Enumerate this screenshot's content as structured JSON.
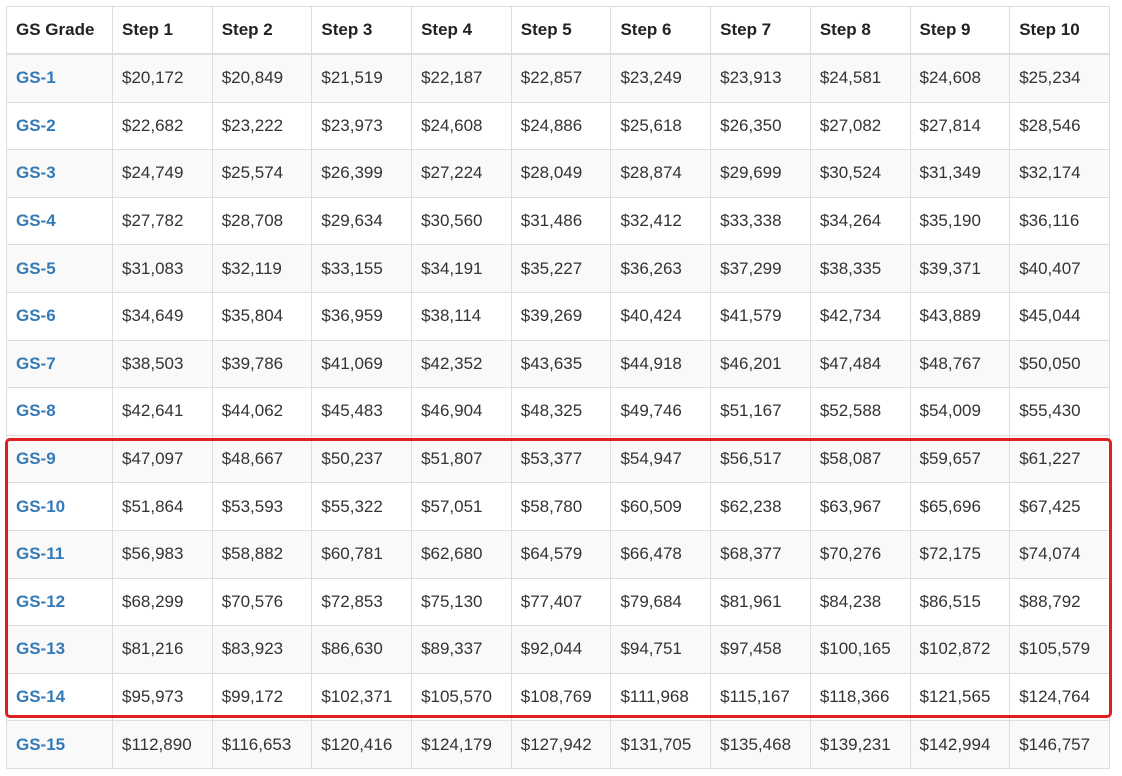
{
  "table": {
    "headers": [
      "GS Grade",
      "Step 1",
      "Step 2",
      "Step 3",
      "Step 4",
      "Step 5",
      "Step 6",
      "Step 7",
      "Step 8",
      "Step 9",
      "Step 10"
    ],
    "rows": [
      {
        "grade": "GS-1",
        "steps": [
          "$20,172",
          "$20,849",
          "$21,519",
          "$22,187",
          "$22,857",
          "$23,249",
          "$23,913",
          "$24,581",
          "$24,608",
          "$25,234"
        ]
      },
      {
        "grade": "GS-2",
        "steps": [
          "$22,682",
          "$23,222",
          "$23,973",
          "$24,608",
          "$24,886",
          "$25,618",
          "$26,350",
          "$27,082",
          "$27,814",
          "$28,546"
        ]
      },
      {
        "grade": "GS-3",
        "steps": [
          "$24,749",
          "$25,574",
          "$26,399",
          "$27,224",
          "$28,049",
          "$28,874",
          "$29,699",
          "$30,524",
          "$31,349",
          "$32,174"
        ]
      },
      {
        "grade": "GS-4",
        "steps": [
          "$27,782",
          "$28,708",
          "$29,634",
          "$30,560",
          "$31,486",
          "$32,412",
          "$33,338",
          "$34,264",
          "$35,190",
          "$36,116"
        ]
      },
      {
        "grade": "GS-5",
        "steps": [
          "$31,083",
          "$32,119",
          "$33,155",
          "$34,191",
          "$35,227",
          "$36,263",
          "$37,299",
          "$38,335",
          "$39,371",
          "$40,407"
        ]
      },
      {
        "grade": "GS-6",
        "steps": [
          "$34,649",
          "$35,804",
          "$36,959",
          "$38,114",
          "$39,269",
          "$40,424",
          "$41,579",
          "$42,734",
          "$43,889",
          "$45,044"
        ]
      },
      {
        "grade": "GS-7",
        "steps": [
          "$38,503",
          "$39,786",
          "$41,069",
          "$42,352",
          "$43,635",
          "$44,918",
          "$46,201",
          "$47,484",
          "$48,767",
          "$50,050"
        ]
      },
      {
        "grade": "GS-8",
        "steps": [
          "$42,641",
          "$44,062",
          "$45,483",
          "$46,904",
          "$48,325",
          "$49,746",
          "$51,167",
          "$52,588",
          "$54,009",
          "$55,430"
        ]
      },
      {
        "grade": "GS-9",
        "steps": [
          "$47,097",
          "$48,667",
          "$50,237",
          "$51,807",
          "$53,377",
          "$54,947",
          "$56,517",
          "$58,087",
          "$59,657",
          "$61,227"
        ]
      },
      {
        "grade": "GS-10",
        "steps": [
          "$51,864",
          "$53,593",
          "$55,322",
          "$57,051",
          "$58,780",
          "$60,509",
          "$62,238",
          "$63,967",
          "$65,696",
          "$67,425"
        ]
      },
      {
        "grade": "GS-11",
        "steps": [
          "$56,983",
          "$58,882",
          "$60,781",
          "$62,680",
          "$64,579",
          "$66,478",
          "$68,377",
          "$70,276",
          "$72,175",
          "$74,074"
        ]
      },
      {
        "grade": "GS-12",
        "steps": [
          "$68,299",
          "$70,576",
          "$72,853",
          "$75,130",
          "$77,407",
          "$79,684",
          "$81,961",
          "$84,238",
          "$86,515",
          "$88,792"
        ]
      },
      {
        "grade": "GS-13",
        "steps": [
          "$81,216",
          "$83,923",
          "$86,630",
          "$89,337",
          "$92,044",
          "$94,751",
          "$97,458",
          "$100,165",
          "$102,872",
          "$105,579"
        ]
      },
      {
        "grade": "GS-14",
        "steps": [
          "$95,973",
          "$99,172",
          "$102,371",
          "$105,570",
          "$108,769",
          "$111,968",
          "$115,167",
          "$118,366",
          "$121,565",
          "$124,764"
        ]
      },
      {
        "grade": "GS-15",
        "steps": [
          "$112,890",
          "$116,653",
          "$120,416",
          "$124,179",
          "$127,942",
          "$131,705",
          "$135,468",
          "$139,231",
          "$142,994",
          "$146,757"
        ]
      }
    ]
  },
  "highlight": {
    "grades": [
      "GS-9",
      "GS-10",
      "GS-11",
      "GS-12",
      "GS-13",
      "GS-14"
    ],
    "color": "#e02020"
  },
  "colors": {
    "link": "#337ab7",
    "border": "#dddddd",
    "stripe": "#f9f9f9"
  }
}
